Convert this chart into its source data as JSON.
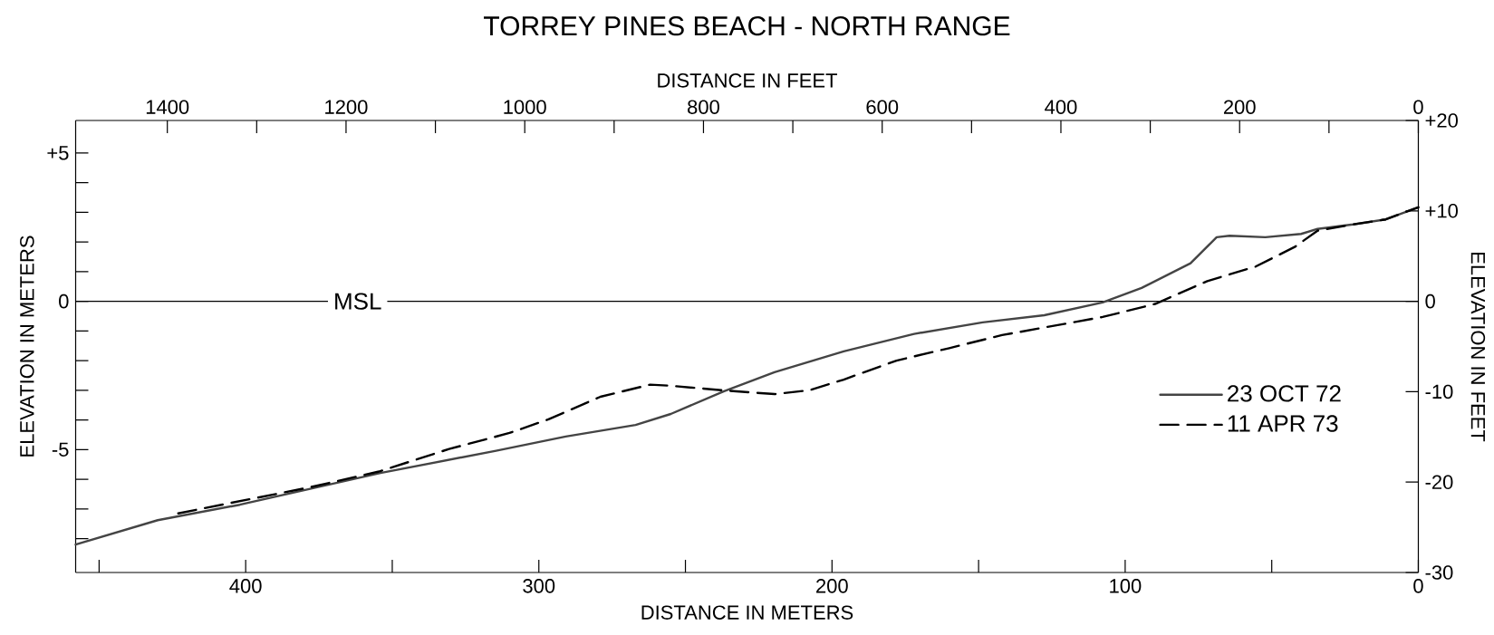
{
  "chart_data": {
    "type": "line",
    "title": "TORREY PINES BEACH - NORTH RANGE",
    "xlabel": "DISTANCE IN METERS",
    "x2label": "DISTANCE IN FEET",
    "ylabel": "ELEVATION IN METERS",
    "y2label": "ELEVATION IN FEET",
    "xlim": [
      458,
      0
    ],
    "x2lim": [
      1502.6,
      0
    ],
    "ylim": [
      -9.144,
      6.096
    ],
    "y2lim": [
      -30,
      20
    ],
    "xticks": [
      {
        "value": 450,
        "label": null
      },
      400,
      {
        "value": 350,
        "label": null
      },
      300,
      {
        "value": 250,
        "label": null
      },
      200,
      {
        "value": 150,
        "label": null
      },
      100,
      {
        "value": 50,
        "label": null
      },
      0
    ],
    "x2ticks": [
      1400,
      {
        "value": 1300,
        "label": null
      },
      1200,
      {
        "value": 1100,
        "label": null
      },
      1000,
      {
        "value": 900,
        "label": null
      },
      800,
      {
        "value": 700,
        "label": null
      },
      600,
      {
        "value": 500,
        "label": null
      },
      400,
      {
        "value": 300,
        "label": null
      },
      200,
      {
        "value": 100,
        "label": null
      },
      0
    ],
    "yticks": [
      {
        "value": 5,
        "label": "+5"
      },
      {
        "value": 4,
        "label": null
      },
      {
        "value": 3,
        "label": null
      },
      {
        "value": 2,
        "label": null
      },
      {
        "value": 1,
        "label": null
      },
      0,
      {
        "value": -1,
        "label": null
      },
      {
        "value": -2,
        "label": null
      },
      {
        "value": -3,
        "label": null
      },
      {
        "value": -4,
        "label": null
      },
      -5,
      {
        "value": -6,
        "label": null
      },
      {
        "value": -7,
        "label": null
      },
      {
        "value": -8,
        "label": null
      }
    ],
    "y2ticks": [
      {
        "value": 20,
        "label": "+20"
      },
      {
        "value": 10,
        "label": "+10"
      },
      0,
      -10,
      -20,
      -30
    ],
    "ref_lines": [
      {
        "axis": "y",
        "value": 0,
        "label": "MSL"
      }
    ],
    "legend": "right",
    "series": [
      {
        "name": "23 OCT 72",
        "color": "#444444",
        "line_style": "solid",
        "x": [
          458,
          430,
          402,
          354,
          314.6,
          290.8,
          267,
          255,
          237,
          219.6,
          196,
          172,
          148.6,
          127.6,
          107.7,
          94.4,
          77.7,
          68.8,
          64.4,
          52.2,
          40,
          34.4,
          22.3,
          11.1,
          0
        ],
        "values": [
          -8.2,
          -7.38,
          -6.86,
          -5.79,
          -5.04,
          -4.56,
          -4.17,
          -3.8,
          -3.04,
          -2.39,
          -1.69,
          -1.1,
          -0.71,
          -0.47,
          -0.04,
          0.45,
          1.28,
          2.16,
          2.21,
          2.16,
          2.27,
          2.44,
          2.59,
          2.76,
          3.17
        ]
      },
      {
        "name": "11 APR 73",
        "color": "#000000",
        "line_style": "dashed",
        "x": [
          423,
          378,
          354.5,
          330.6,
          310,
          296.7,
          279,
          262,
          255,
          237.5,
          219.6,
          207.8,
          196,
          178,
          160,
          142,
          107.7,
          89.8,
          72,
          55.5,
          42.2,
          34.4,
          22.3,
          11.1,
          0
        ],
        "values": [
          -7.15,
          -6.27,
          -5.74,
          -4.98,
          -4.44,
          -3.98,
          -3.22,
          -2.81,
          -2.85,
          -3.0,
          -3.13,
          -3.0,
          -2.64,
          -2.0,
          -1.58,
          -1.14,
          -0.53,
          -0.09,
          0.68,
          1.17,
          1.83,
          2.38,
          2.59,
          2.76,
          3.17
        ]
      }
    ]
  }
}
